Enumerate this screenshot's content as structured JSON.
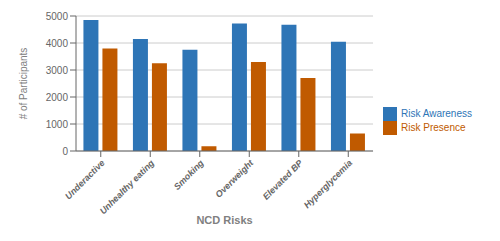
{
  "chart_data": {
    "type": "bar",
    "xlabel": "NCD Risks",
    "ylabel": "# of Participants",
    "categories": [
      "Underactive",
      "Unhealthy eating",
      "Smoking",
      "Overweight",
      "Elevated BP",
      "Hyperglycemia"
    ],
    "series": [
      {
        "name": "Risk Awareness",
        "color": "#2E75B6",
        "values": [
          4850,
          4150,
          3750,
          4720,
          4680,
          4050
        ]
      },
      {
        "name": "Risk Presence",
        "color": "#C05A00",
        "values": [
          3800,
          3250,
          175,
          3300,
          2700,
          650
        ]
      }
    ],
    "ylim": [
      0,
      5000
    ],
    "yticks": [
      0,
      1000,
      2000,
      3000,
      4000,
      5000
    ],
    "grid": true,
    "legend": "right"
  }
}
